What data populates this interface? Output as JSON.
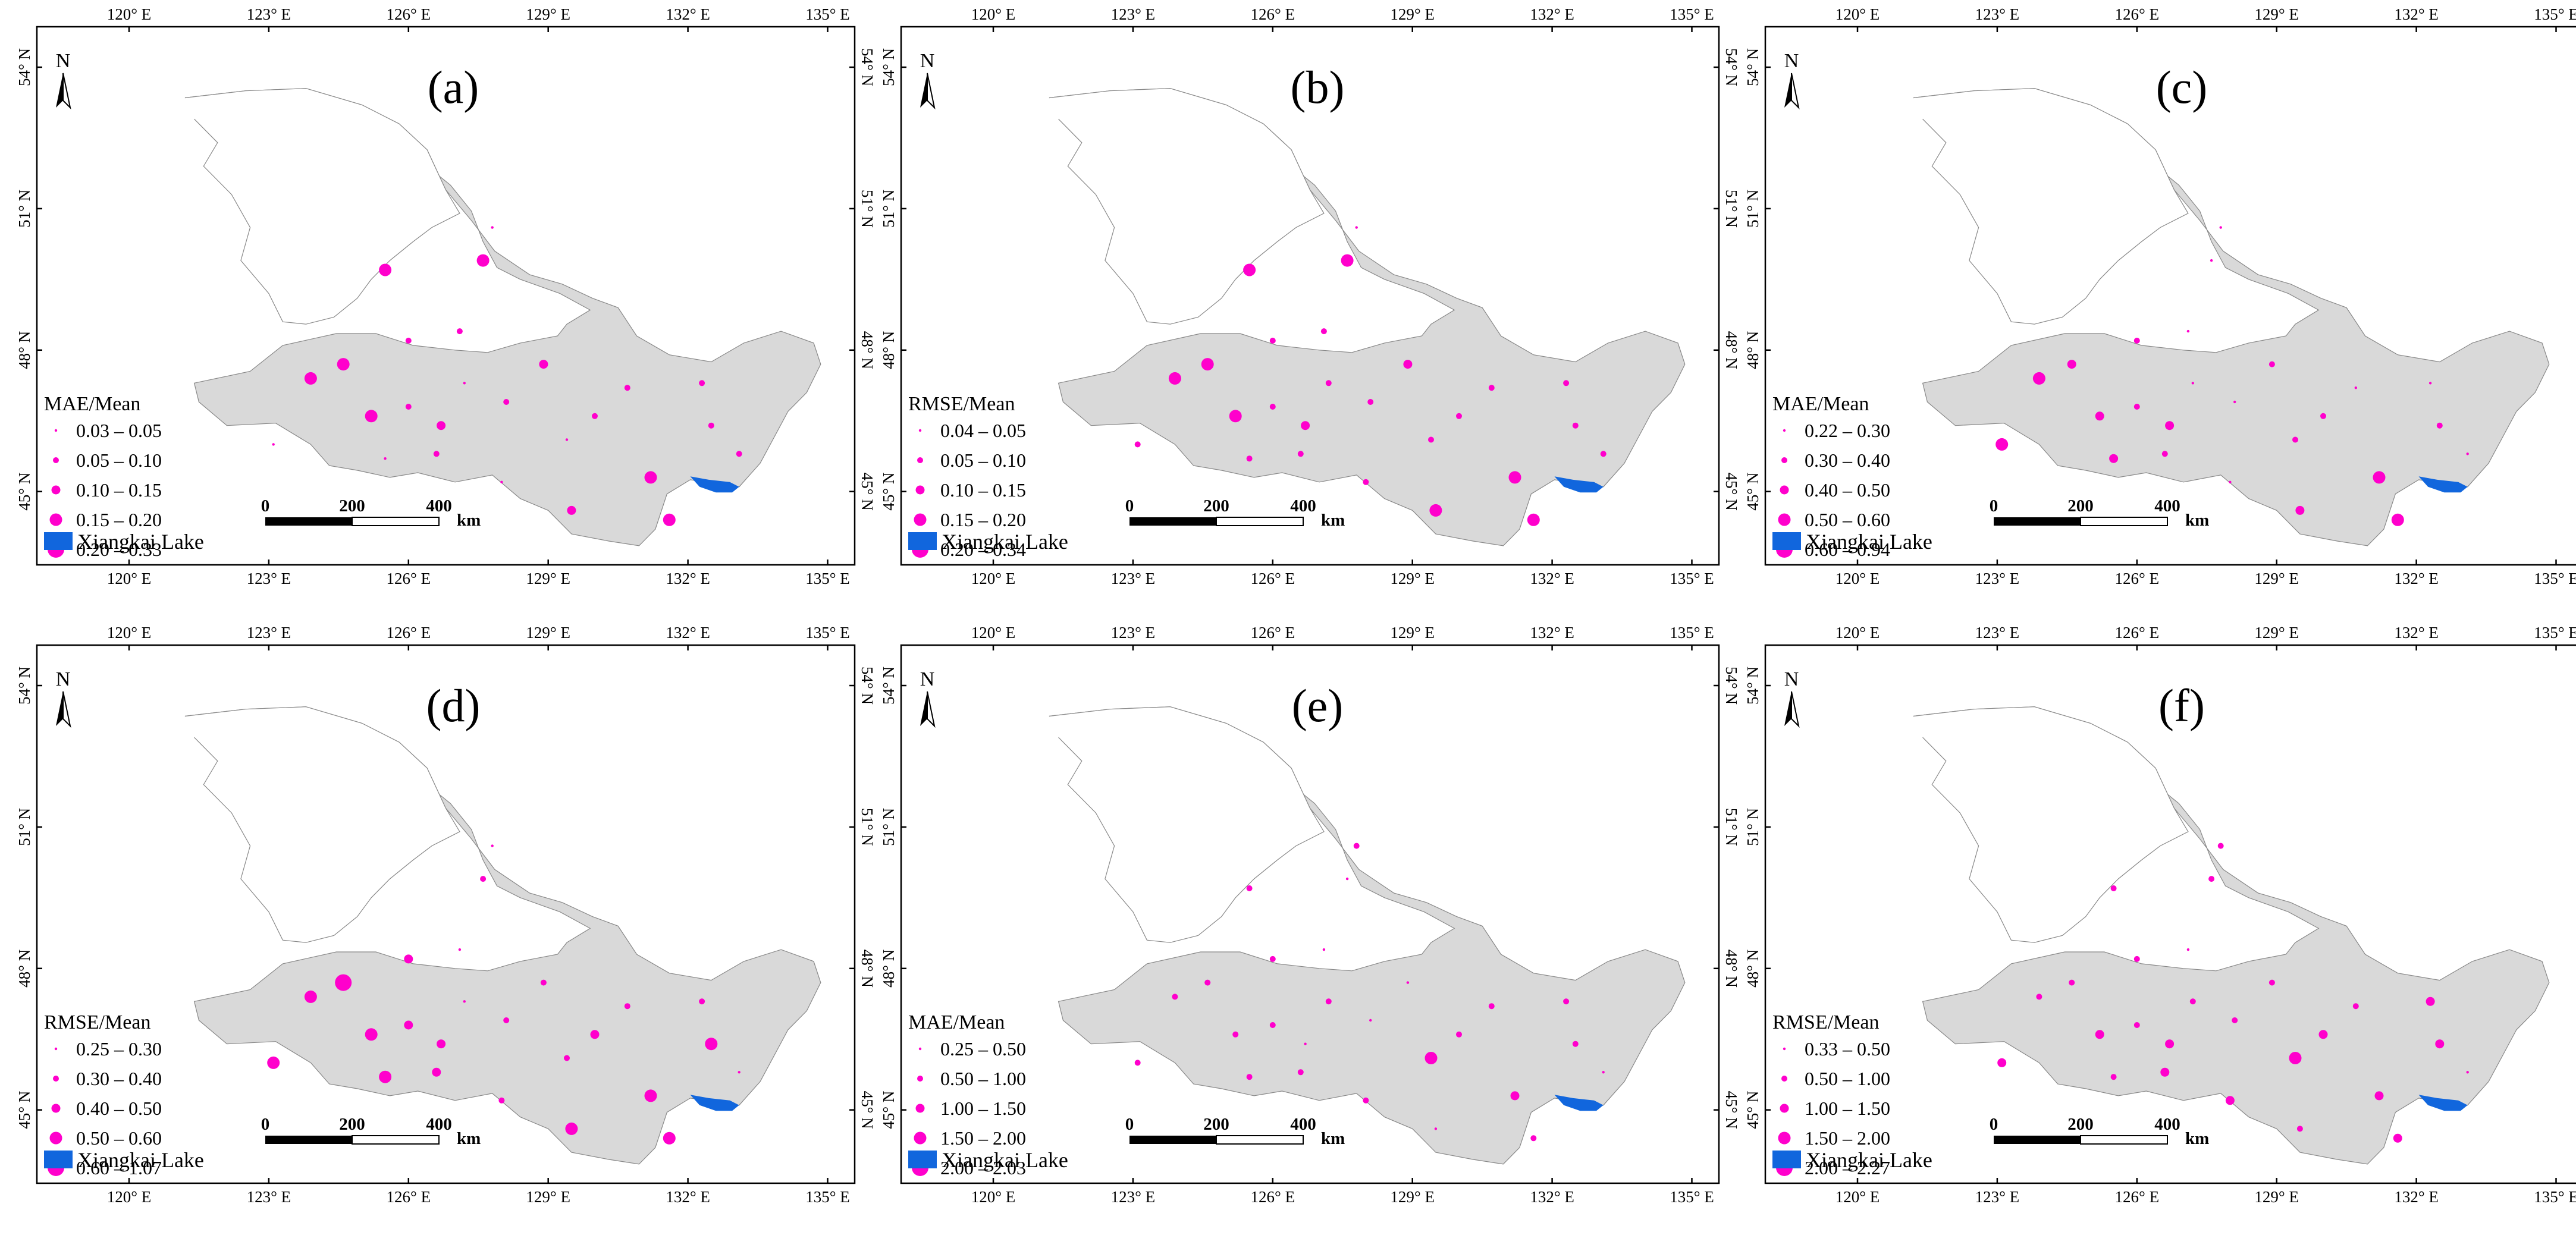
{
  "figure": {
    "panels": [
      {
        "id": "a",
        "label": "(a)",
        "legend_title": "MAE/Mean",
        "classes": [
          "0.03 – 0.05",
          "0.05 – 0.10",
          "0.10 – 0.15",
          "0.15 – 0.20",
          "0.20 – 0.33"
        ],
        "stations": [
          {
            "lon": 125.5,
            "lat": 49.7,
            "cls": 3
          },
          {
            "lon": 127.6,
            "lat": 49.9,
            "cls": 3
          },
          {
            "lon": 127.8,
            "lat": 50.6,
            "cls": 0
          },
          {
            "lon": 127.1,
            "lat": 48.4,
            "cls": 1
          },
          {
            "lon": 128.9,
            "lat": 47.7,
            "cls": 2
          },
          {
            "lon": 124.6,
            "lat": 47.7,
            "cls": 3
          },
          {
            "lon": 123.9,
            "lat": 47.4,
            "cls": 3
          },
          {
            "lon": 126.0,
            "lat": 48.2,
            "cls": 1
          },
          {
            "lon": 125.2,
            "lat": 46.6,
            "cls": 3
          },
          {
            "lon": 126.0,
            "lat": 46.8,
            "cls": 1
          },
          {
            "lon": 127.2,
            "lat": 47.3,
            "cls": 0
          },
          {
            "lon": 128.1,
            "lat": 46.9,
            "cls": 1
          },
          {
            "lon": 126.7,
            "lat": 46.4,
            "cls": 2
          },
          {
            "lon": 129.4,
            "lat": 46.1,
            "cls": 0
          },
          {
            "lon": 130.0,
            "lat": 46.6,
            "cls": 1
          },
          {
            "lon": 130.7,
            "lat": 47.2,
            "cls": 1
          },
          {
            "lon": 132.3,
            "lat": 47.3,
            "cls": 1
          },
          {
            "lon": 132.5,
            "lat": 46.4,
            "cls": 1
          },
          {
            "lon": 133.1,
            "lat": 45.8,
            "cls": 1
          },
          {
            "lon": 123.1,
            "lat": 46.0,
            "cls": 0
          },
          {
            "lon": 125.5,
            "lat": 45.7,
            "cls": 0
          },
          {
            "lon": 126.6,
            "lat": 45.8,
            "cls": 1
          },
          {
            "lon": 128.0,
            "lat": 45.2,
            "cls": 0
          },
          {
            "lon": 131.2,
            "lat": 45.3,
            "cls": 3
          },
          {
            "lon": 129.5,
            "lat": 44.6,
            "cls": 2
          },
          {
            "lon": 131.6,
            "lat": 44.4,
            "cls": 3
          }
        ]
      },
      {
        "id": "b",
        "label": "(b)",
        "legend_title": "RMSE/Mean",
        "classes": [
          "0.04 – 0.05",
          "0.05 – 0.10",
          "0.10 – 0.15",
          "0.15 – 0.20",
          "0.20 – 0.34"
        ],
        "stations": [
          {
            "lon": 125.5,
            "lat": 49.7,
            "cls": 3
          },
          {
            "lon": 127.6,
            "lat": 49.9,
            "cls": 3
          },
          {
            "lon": 127.8,
            "lat": 50.6,
            "cls": 0
          },
          {
            "lon": 127.1,
            "lat": 48.4,
            "cls": 1
          },
          {
            "lon": 128.9,
            "lat": 47.7,
            "cls": 2
          },
          {
            "lon": 124.6,
            "lat": 47.7,
            "cls": 3
          },
          {
            "lon": 123.9,
            "lat": 47.4,
            "cls": 3
          },
          {
            "lon": 126.0,
            "lat": 48.2,
            "cls": 1
          },
          {
            "lon": 125.2,
            "lat": 46.6,
            "cls": 3
          },
          {
            "lon": 126.0,
            "lat": 46.8,
            "cls": 1
          },
          {
            "lon": 127.2,
            "lat": 47.3,
            "cls": 1
          },
          {
            "lon": 128.1,
            "lat": 46.9,
            "cls": 1
          },
          {
            "lon": 126.7,
            "lat": 46.4,
            "cls": 2
          },
          {
            "lon": 129.4,
            "lat": 46.1,
            "cls": 1
          },
          {
            "lon": 130.0,
            "lat": 46.6,
            "cls": 1
          },
          {
            "lon": 130.7,
            "lat": 47.2,
            "cls": 1
          },
          {
            "lon": 132.3,
            "lat": 47.3,
            "cls": 1
          },
          {
            "lon": 132.5,
            "lat": 46.4,
            "cls": 1
          },
          {
            "lon": 133.1,
            "lat": 45.8,
            "cls": 1
          },
          {
            "lon": 123.1,
            "lat": 46.0,
            "cls": 1
          },
          {
            "lon": 125.5,
            "lat": 45.7,
            "cls": 1
          },
          {
            "lon": 126.6,
            "lat": 45.8,
            "cls": 1
          },
          {
            "lon": 128.0,
            "lat": 45.2,
            "cls": 1
          },
          {
            "lon": 131.2,
            "lat": 45.3,
            "cls": 3
          },
          {
            "lon": 129.5,
            "lat": 44.6,
            "cls": 3
          },
          {
            "lon": 131.6,
            "lat": 44.4,
            "cls": 3
          }
        ]
      },
      {
        "id": "c",
        "label": "(c)",
        "legend_title": "MAE/Mean",
        "classes": [
          "0.22 – 0.30",
          "0.30 – 0.40",
          "0.40 – 0.50",
          "0.50 – 0.60",
          "0.60 – 0.94"
        ],
        "stations": [
          {
            "lon": 127.6,
            "lat": 49.9,
            "cls": 0
          },
          {
            "lon": 127.8,
            "lat": 50.6,
            "cls": 0
          },
          {
            "lon": 127.1,
            "lat": 48.4,
            "cls": 0
          },
          {
            "lon": 128.9,
            "lat": 47.7,
            "cls": 1
          },
          {
            "lon": 124.6,
            "lat": 47.7,
            "cls": 2
          },
          {
            "lon": 123.9,
            "lat": 47.4,
            "cls": 3
          },
          {
            "lon": 126.0,
            "lat": 48.2,
            "cls": 1
          },
          {
            "lon": 125.2,
            "lat": 46.6,
            "cls": 2
          },
          {
            "lon": 126.0,
            "lat": 46.8,
            "cls": 1
          },
          {
            "lon": 127.2,
            "lat": 47.3,
            "cls": 0
          },
          {
            "lon": 128.1,
            "lat": 46.9,
            "cls": 0
          },
          {
            "lon": 126.7,
            "lat": 46.4,
            "cls": 2
          },
          {
            "lon": 129.4,
            "lat": 46.1,
            "cls": 1
          },
          {
            "lon": 130.0,
            "lat": 46.6,
            "cls": 1
          },
          {
            "lon": 130.7,
            "lat": 47.2,
            "cls": 0
          },
          {
            "lon": 132.3,
            "lat": 47.3,
            "cls": 0
          },
          {
            "lon": 132.5,
            "lat": 46.4,
            "cls": 1
          },
          {
            "lon": 133.1,
            "lat": 45.8,
            "cls": 0
          },
          {
            "lon": 123.1,
            "lat": 46.0,
            "cls": 3
          },
          {
            "lon": 125.5,
            "lat": 45.7,
            "cls": 2
          },
          {
            "lon": 126.6,
            "lat": 45.8,
            "cls": 1
          },
          {
            "lon": 128.0,
            "lat": 45.2,
            "cls": 0
          },
          {
            "lon": 131.2,
            "lat": 45.3,
            "cls": 3
          },
          {
            "lon": 129.5,
            "lat": 44.6,
            "cls": 2
          },
          {
            "lon": 131.6,
            "lat": 44.4,
            "cls": 3
          }
        ]
      },
      {
        "id": "d",
        "label": "(d)",
        "legend_title": "RMSE/Mean",
        "classes": [
          "0.25 – 0.30",
          "0.30 – 0.40",
          "0.40 – 0.50",
          "0.50 – 0.60",
          "0.60 – 1.07"
        ],
        "stations": [
          {
            "lon": 127.6,
            "lat": 49.9,
            "cls": 1
          },
          {
            "lon": 127.8,
            "lat": 50.6,
            "cls": 0
          },
          {
            "lon": 127.1,
            "lat": 48.4,
            "cls": 0
          },
          {
            "lon": 128.9,
            "lat": 47.7,
            "cls": 1
          },
          {
            "lon": 124.6,
            "lat": 47.7,
            "cls": 4
          },
          {
            "lon": 123.9,
            "lat": 47.4,
            "cls": 3
          },
          {
            "lon": 126.0,
            "lat": 48.2,
            "cls": 2
          },
          {
            "lon": 125.2,
            "lat": 46.6,
            "cls": 3
          },
          {
            "lon": 126.0,
            "lat": 46.8,
            "cls": 2
          },
          {
            "lon": 127.2,
            "lat": 47.3,
            "cls": 0
          },
          {
            "lon": 128.1,
            "lat": 46.9,
            "cls": 1
          },
          {
            "lon": 126.7,
            "lat": 46.4,
            "cls": 2
          },
          {
            "lon": 129.4,
            "lat": 46.1,
            "cls": 1
          },
          {
            "lon": 130.0,
            "lat": 46.6,
            "cls": 2
          },
          {
            "lon": 130.7,
            "lat": 47.2,
            "cls": 1
          },
          {
            "lon": 132.3,
            "lat": 47.3,
            "cls": 1
          },
          {
            "lon": 132.5,
            "lat": 46.4,
            "cls": 3
          },
          {
            "lon": 133.1,
            "lat": 45.8,
            "cls": 0
          },
          {
            "lon": 123.1,
            "lat": 46.0,
            "cls": 3
          },
          {
            "lon": 125.5,
            "lat": 45.7,
            "cls": 3
          },
          {
            "lon": 126.6,
            "lat": 45.8,
            "cls": 2
          },
          {
            "lon": 128.0,
            "lat": 45.2,
            "cls": 1
          },
          {
            "lon": 131.2,
            "lat": 45.3,
            "cls": 3
          },
          {
            "lon": 129.5,
            "lat": 44.6,
            "cls": 3
          },
          {
            "lon": 131.6,
            "lat": 44.4,
            "cls": 3
          }
        ]
      },
      {
        "id": "e",
        "label": "(e)",
        "legend_title": "MAE/Mean",
        "classes": [
          "0.25 – 0.50",
          "0.50 – 1.00",
          "1.00 – 1.50",
          "1.50 – 2.00",
          "2.00 – 2.03"
        ],
        "stations": [
          {
            "lon": 125.5,
            "lat": 49.7,
            "cls": 1
          },
          {
            "lon": 127.6,
            "lat": 49.9,
            "cls": 0
          },
          {
            "lon": 127.8,
            "lat": 50.6,
            "cls": 1
          },
          {
            "lon": 127.1,
            "lat": 48.4,
            "cls": 0
          },
          {
            "lon": 128.9,
            "lat": 47.7,
            "cls": 0
          },
          {
            "lon": 124.6,
            "lat": 47.7,
            "cls": 1
          },
          {
            "lon": 123.9,
            "lat": 47.4,
            "cls": 1
          },
          {
            "lon": 126.0,
            "lat": 48.2,
            "cls": 1
          },
          {
            "lon": 125.2,
            "lat": 46.6,
            "cls": 1
          },
          {
            "lon": 126.0,
            "lat": 46.8,
            "cls": 1
          },
          {
            "lon": 127.2,
            "lat": 47.3,
            "cls": 1
          },
          {
            "lon": 128.1,
            "lat": 46.9,
            "cls": 0
          },
          {
            "lon": 126.7,
            "lat": 46.4,
            "cls": 0
          },
          {
            "lon": 129.4,
            "lat": 46.1,
            "cls": 3
          },
          {
            "lon": 130.0,
            "lat": 46.6,
            "cls": 1
          },
          {
            "lon": 130.7,
            "lat": 47.2,
            "cls": 1
          },
          {
            "lon": 132.3,
            "lat": 47.3,
            "cls": 1
          },
          {
            "lon": 132.5,
            "lat": 46.4,
            "cls": 1
          },
          {
            "lon": 133.1,
            "lat": 45.8,
            "cls": 0
          },
          {
            "lon": 123.1,
            "lat": 46.0,
            "cls": 1
          },
          {
            "lon": 125.5,
            "lat": 45.7,
            "cls": 1
          },
          {
            "lon": 126.6,
            "lat": 45.8,
            "cls": 1
          },
          {
            "lon": 128.0,
            "lat": 45.2,
            "cls": 1
          },
          {
            "lon": 131.2,
            "lat": 45.3,
            "cls": 2
          },
          {
            "lon": 129.5,
            "lat": 44.6,
            "cls": 0
          },
          {
            "lon": 131.6,
            "lat": 44.4,
            "cls": 1
          }
        ]
      },
      {
        "id": "f",
        "label": "(f)",
        "legend_title": "RMSE/Mean",
        "classes": [
          "0.33 – 0.50",
          "0.50 – 1.00",
          "1.00 – 1.50",
          "1.50 – 2.00",
          "2.00 – 2.27"
        ],
        "stations": [
          {
            "lon": 125.5,
            "lat": 49.7,
            "cls": 1
          },
          {
            "lon": 127.6,
            "lat": 49.9,
            "cls": 1
          },
          {
            "lon": 127.8,
            "lat": 50.6,
            "cls": 1
          },
          {
            "lon": 127.1,
            "lat": 48.4,
            "cls": 0
          },
          {
            "lon": 128.9,
            "lat": 47.7,
            "cls": 1
          },
          {
            "lon": 124.6,
            "lat": 47.7,
            "cls": 1
          },
          {
            "lon": 123.9,
            "lat": 47.4,
            "cls": 1
          },
          {
            "lon": 126.0,
            "lat": 48.2,
            "cls": 1
          },
          {
            "lon": 125.2,
            "lat": 46.6,
            "cls": 2
          },
          {
            "lon": 126.0,
            "lat": 46.8,
            "cls": 1
          },
          {
            "lon": 127.2,
            "lat": 47.3,
            "cls": 1
          },
          {
            "lon": 128.1,
            "lat": 46.9,
            "cls": 1
          },
          {
            "lon": 126.7,
            "lat": 46.4,
            "cls": 2
          },
          {
            "lon": 129.4,
            "lat": 46.1,
            "cls": 3
          },
          {
            "lon": 130.0,
            "lat": 46.6,
            "cls": 2
          },
          {
            "lon": 130.7,
            "lat": 47.2,
            "cls": 1
          },
          {
            "lon": 132.3,
            "lat": 47.3,
            "cls": 2
          },
          {
            "lon": 132.5,
            "lat": 46.4,
            "cls": 2
          },
          {
            "lon": 133.1,
            "lat": 45.8,
            "cls": 0
          },
          {
            "lon": 123.1,
            "lat": 46.0,
            "cls": 2
          },
          {
            "lon": 125.5,
            "lat": 45.7,
            "cls": 1
          },
          {
            "lon": 126.6,
            "lat": 45.8,
            "cls": 2
          },
          {
            "lon": 128.0,
            "lat": 45.2,
            "cls": 2
          },
          {
            "lon": 131.2,
            "lat": 45.3,
            "cls": 2
          },
          {
            "lon": 129.5,
            "lat": 44.6,
            "cls": 1
          },
          {
            "lon": 131.6,
            "lat": 44.4,
            "cls": 2
          }
        ]
      }
    ],
    "lon_ticks": [
      "120° E",
      "123° E",
      "126° E",
      "129° E",
      "132° E",
      "135° E"
    ],
    "lat_ticks": [
      "54° N",
      "51° N",
      "48° N",
      "45° N"
    ],
    "north_label": "N",
    "scale_labels": [
      "0",
      "200",
      "400",
      "km"
    ],
    "lake_legend_label": "Xiangkai Lake",
    "colors": {
      "marker": "#ff00cc",
      "land": "#d9d9d9",
      "lake": "#1166dd",
      "outline": "#888888",
      "frame": "#000000"
    },
    "marker_symbol": "circle"
  }
}
